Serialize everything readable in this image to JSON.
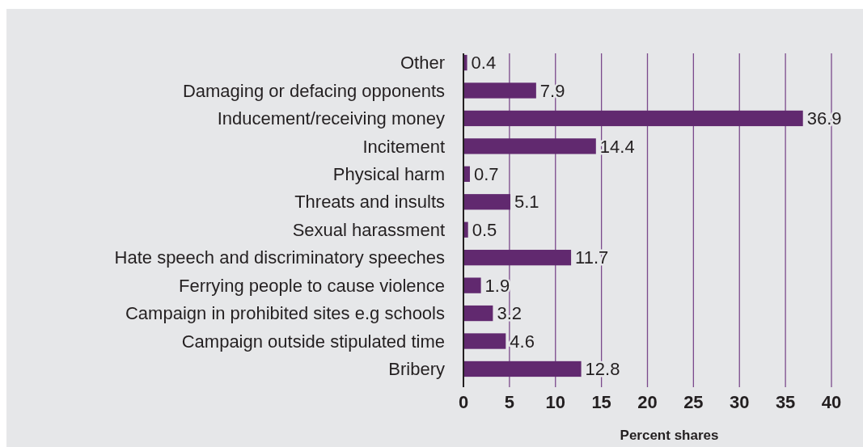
{
  "chart_data": {
    "type": "bar",
    "orientation": "horizontal",
    "xlabel": "Percent shares",
    "categories": [
      "Other",
      "Damaging or defacing opponents",
      "Inducement/receiving money",
      "Incitement",
      "Physical harm",
      "Threats and insults",
      "Sexual harassment",
      "Hate speech and discriminatory speeches",
      "Ferrying people to cause violence",
      "Campaign in prohibited sites e.g schools",
      "Campaign outside stipulated time",
      "Bribery"
    ],
    "values": [
      0.4,
      7.9,
      36.9,
      14.4,
      0.7,
      5.1,
      0.5,
      11.7,
      1.9,
      3.2,
      4.6,
      12.8
    ],
    "color": "#61296f",
    "xlim": [
      0,
      40
    ],
    "xticks": [
      0,
      5,
      10,
      15,
      20,
      25,
      30,
      35,
      40
    ],
    "grid": "x",
    "data_labels": true
  }
}
